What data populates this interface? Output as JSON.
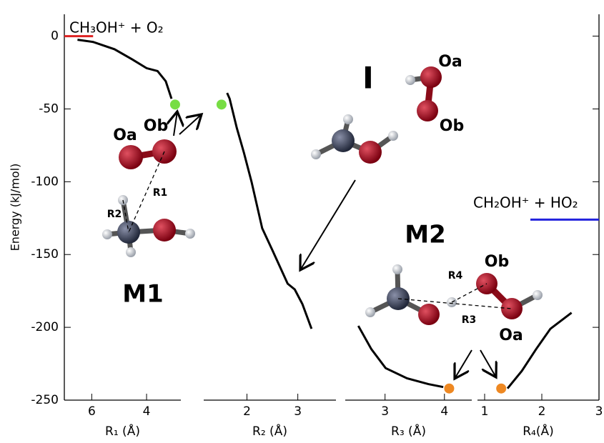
{
  "chart_data": {
    "type": "line",
    "ylabel": "Energy (kJ/mol)",
    "ylim": [
      -250,
      15
    ],
    "yticks": [
      0,
      -50,
      -100,
      -150,
      -200,
      -250
    ],
    "panels": [
      {
        "xlabel": "R₁ (Å)",
        "xlim": [
          7,
          2.75
        ],
        "xticks": [
          6,
          4
        ],
        "curve": {
          "color": "#000000",
          "x": [
            6.52,
            5.95,
            5.17,
            4.52,
            4.0,
            3.6,
            3.3,
            3.09
          ],
          "values": [
            -2.5,
            -4,
            -9,
            -16,
            -22,
            -24,
            -31,
            -43
          ]
        },
        "markers": {
          "color": "#77dd44",
          "x": [
            2.96
          ],
          "values": [
            -47
          ]
        },
        "levels": [
          {
            "label": "CH₃OH⁺ + O₂",
            "color": "#dd2222",
            "x": [
              7,
              5.95
            ],
            "values": [
              0,
              0
            ]
          }
        ]
      },
      {
        "xlabel": "R₂ (Å)",
        "xlim": [
          1.15,
          3.75
        ],
        "xticks": [
          2,
          3
        ],
        "curve": {
          "color": "#000000",
          "x": [
            1.61,
            1.66,
            1.8,
            1.94,
            2.09,
            2.3,
            2.5,
            2.8,
            2.94,
            3.09,
            3.27
          ],
          "values": [
            -39,
            -43,
            -63,
            -80,
            -100,
            -132,
            -147,
            -170,
            -174,
            -184,
            -201
          ]
        },
        "markers": {
          "color": "#77dd44",
          "x": [
            1.5
          ],
          "values": [
            -47
          ]
        },
        "levels": []
      },
      {
        "xlabel": "R₃ (Å)",
        "xlim": [
          2.33,
          4.46
        ],
        "xticks": [
          3,
          4
        ],
        "curve": {
          "color": "#000000",
          "x": [
            2.55,
            2.77,
            3.01,
            3.37,
            3.73,
            3.98
          ],
          "values": [
            -199,
            -215,
            -228,
            -235,
            -239,
            -241
          ]
        },
        "markers": {
          "color": "#ee8822",
          "x": [
            4.08
          ],
          "values": [
            -242
          ]
        },
        "levels": []
      },
      {
        "xlabel": "R₄(Å)",
        "xlim": [
          0.875,
          3
        ],
        "xticks": [
          1,
          2,
          3
        ],
        "curve": {
          "color": "#000000",
          "x": [
            1.4,
            1.65,
            1.9,
            2.15,
            2.52
          ],
          "values": [
            -242,
            -230,
            -215,
            -201,
            -190
          ]
        },
        "markers": {
          "color": "#ee8822",
          "x": [
            1.29
          ],
          "values": [
            -242
          ]
        },
        "levels": [
          {
            "label": "CH₂OH⁺ + HO₂",
            "color": "#2222dd",
            "x": [
              1.8,
              3
            ],
            "values": [
              -126,
              -126
            ]
          }
        ]
      }
    ],
    "annotations": [
      "I",
      "M1",
      "M2",
      "Oa",
      "Ob",
      "Oa",
      "Ob",
      "R1",
      "R2",
      "Ob",
      "Oa",
      "R4",
      "R3"
    ]
  }
}
